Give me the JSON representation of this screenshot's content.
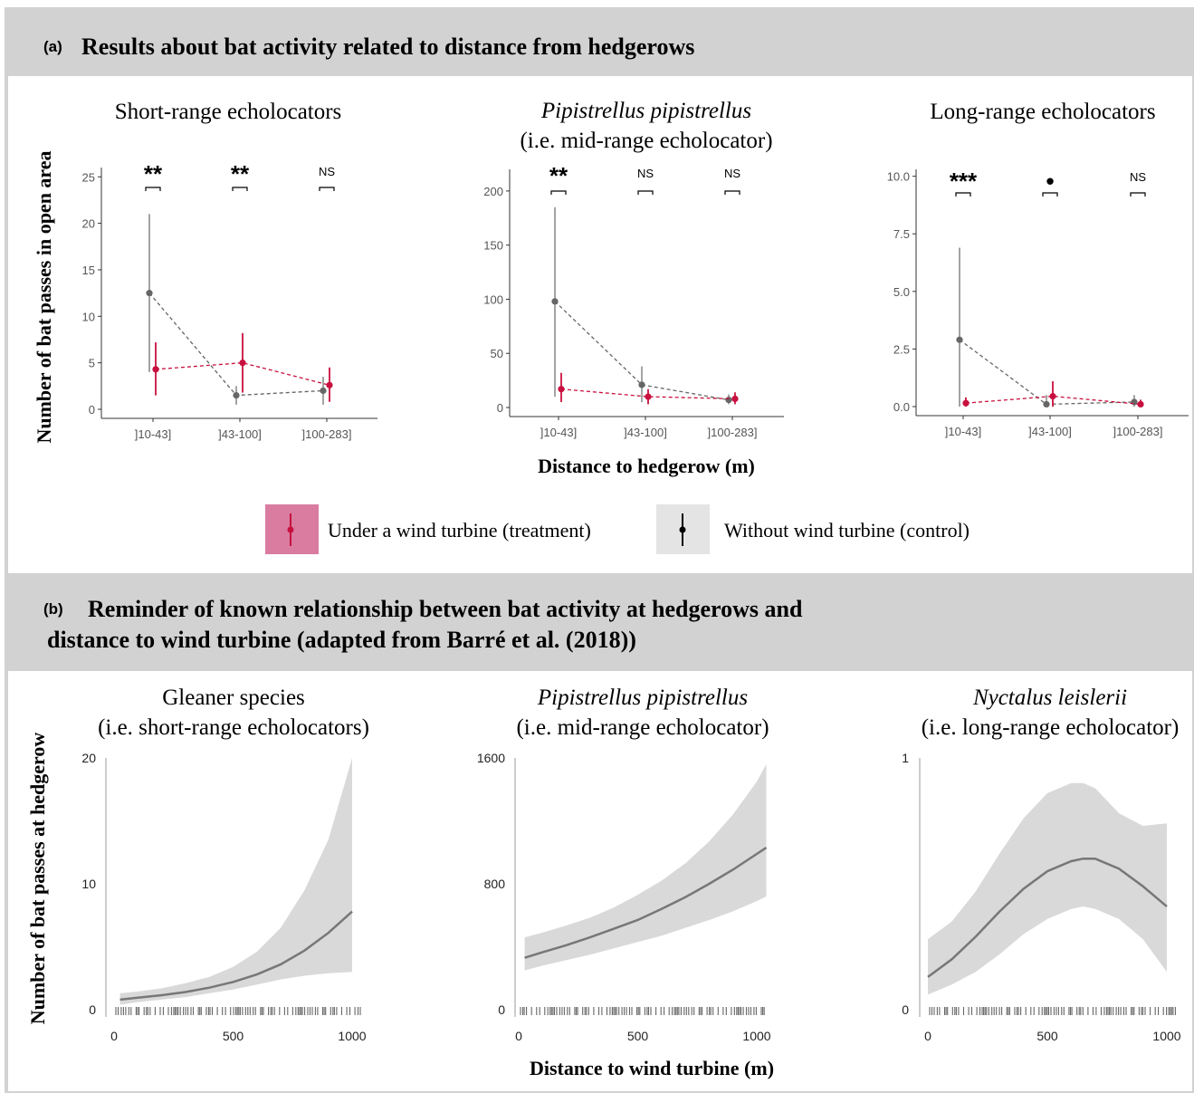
{
  "panel_a": {
    "letter": "(a)",
    "title": "Results about bat activity related to distance from hedgerows",
    "ylabel": "Number of bat passes in open area",
    "xlabel": "Distance to hedgerow (m)",
    "legend": {
      "treatment": "Under a wind turbine (treatment)",
      "control": "Without wind turbine (control)"
    }
  },
  "panel_b": {
    "letter": "(b)",
    "title_line1": "Reminder of known relationship between bat activity at hedgerows and",
    "title_line2": "distance to wind turbine (adapted from Barré et al. (2018))",
    "ylabel": "Number of bat passes at hedgerow",
    "xlabel": "Distance to wind turbine (m)"
  },
  "colors": {
    "treatment": "#c8103e",
    "control": "#666666",
    "header_bg": "#d2d2d2",
    "band": "#d9d9d9",
    "legend_treatment_bg": "#d97ca0",
    "legend_control_bg": "#e4e4e4"
  },
  "chart_data": [
    {
      "type": "scatter",
      "title": "Short-range echolocators",
      "categories": [
        "]10-43]",
        "]43-100]",
        "]100-283]"
      ],
      "ylim": [
        0,
        26
      ],
      "yticks": [
        0,
        5,
        10,
        15,
        20,
        25
      ],
      "ytick_labels": [
        "0",
        "5",
        "10",
        "15",
        "20",
        "25"
      ],
      "significance": [
        "**",
        "**",
        "NS"
      ],
      "series": [
        {
          "key": "control",
          "values": [
            12.5,
            1.5,
            2.0
          ],
          "lower": [
            4.0,
            0.5,
            0.5
          ],
          "upper": [
            21.0,
            2.5,
            3.5
          ]
        },
        {
          "key": "treatment",
          "values": [
            4.3,
            5.0,
            2.6
          ],
          "lower": [
            1.5,
            1.8,
            0.8
          ],
          "upper": [
            7.2,
            8.2,
            4.5
          ]
        }
      ]
    },
    {
      "type": "scatter",
      "title_italic": "Pipistrellus pipistrellus",
      "title_line2": "(i.e. mid-range echolocator)",
      "categories": [
        "]10-43]",
        "]43-100]",
        "]100-283]"
      ],
      "ylim": [
        0,
        220
      ],
      "yticks": [
        0,
        50,
        100,
        150,
        200
      ],
      "ytick_labels": [
        "0",
        "50",
        "100",
        "150",
        "200"
      ],
      "significance": [
        "**",
        "NS",
        "NS"
      ],
      "series": [
        {
          "key": "control",
          "values": [
            98,
            21,
            7
          ],
          "lower": [
            10,
            5,
            3
          ],
          "upper": [
            185,
            38,
            12
          ]
        },
        {
          "key": "treatment",
          "values": [
            17,
            10,
            8
          ],
          "lower": [
            5,
            3,
            3
          ],
          "upper": [
            32,
            17,
            14
          ]
        }
      ]
    },
    {
      "type": "scatter",
      "title": "Long-range echolocators",
      "categories": [
        "]10-43]",
        "]43-100]",
        "]100-283]"
      ],
      "ylim": [
        0,
        10.3
      ],
      "yticks": [
        0,
        2.5,
        5,
        7.5,
        10
      ],
      "ytick_labels": [
        "0.0",
        "2.5",
        "5.0",
        "7.5",
        "10.0"
      ],
      "significance": [
        "***",
        "•",
        "NS"
      ],
      "series": [
        {
          "key": "control",
          "values": [
            2.9,
            0.1,
            0.2
          ],
          "lower": [
            0.0,
            0.0,
            0.0
          ],
          "upper": [
            6.9,
            0.5,
            0.5
          ]
        },
        {
          "key": "treatment",
          "values": [
            0.15,
            0.45,
            0.1
          ],
          "lower": [
            0.0,
            0.0,
            0.0
          ],
          "upper": [
            0.4,
            1.1,
            0.3
          ]
        }
      ]
    },
    {
      "type": "line",
      "title": "Gleaner species",
      "title_line2": "(i.e. short-range echolocators)",
      "xlim": [
        0,
        1050
      ],
      "xticks": [
        0,
        500,
        1000
      ],
      "ylim": [
        0,
        20
      ],
      "yticks": [
        0,
        10,
        20
      ],
      "x": [
        25,
        100,
        200,
        300,
        400,
        500,
        600,
        700,
        800,
        900,
        1000
      ],
      "y": [
        0.8,
        0.95,
        1.15,
        1.4,
        1.75,
        2.2,
        2.8,
        3.6,
        4.7,
        6.1,
        7.8
      ],
      "lower": [
        0.4,
        0.6,
        0.8,
        1.0,
        1.3,
        1.6,
        2.0,
        2.4,
        2.7,
        2.9,
        3.0
      ],
      "upper": [
        1.3,
        1.45,
        1.7,
        2.1,
        2.6,
        3.4,
        4.6,
        6.5,
        9.5,
        13.5,
        20.0
      ]
    },
    {
      "type": "line",
      "title_italic": "Pipistrellus pipistrellus",
      "title_line2": "(i.e. mid-range echolocator)",
      "xlim": [
        0,
        1050
      ],
      "xticks": [
        0,
        500,
        1000
      ],
      "ylim": [
        0,
        1600
      ],
      "yticks": [
        0,
        800,
        1600
      ],
      "x": [
        25,
        100,
        200,
        300,
        400,
        500,
        600,
        700,
        800,
        900,
        1000,
        1040
      ],
      "y": [
        330,
        365,
        410,
        460,
        515,
        570,
        640,
        715,
        800,
        890,
        990,
        1030
      ],
      "lower": [
        250,
        280,
        315,
        350,
        390,
        430,
        470,
        520,
        570,
        625,
        690,
        720
      ],
      "upper": [
        460,
        490,
        535,
        585,
        650,
        730,
        820,
        930,
        1070,
        1240,
        1450,
        1560
      ]
    },
    {
      "type": "line",
      "title_italic": "Nyctalus leislerii",
      "title_line2": "(i.e. long-range echolocator)",
      "xlim": [
        0,
        1050
      ],
      "xticks": [
        0,
        500,
        1000
      ],
      "ylim": [
        0,
        1
      ],
      "yticks": [
        0,
        1
      ],
      "x": [
        0,
        100,
        200,
        300,
        400,
        500,
        600,
        650,
        700,
        800,
        900,
        1000
      ],
      "y": [
        0.13,
        0.2,
        0.29,
        0.39,
        0.48,
        0.55,
        0.59,
        0.6,
        0.6,
        0.56,
        0.49,
        0.41
      ],
      "lower": [
        0.06,
        0.1,
        0.15,
        0.22,
        0.3,
        0.36,
        0.4,
        0.41,
        0.4,
        0.36,
        0.28,
        0.15
      ],
      "upper": [
        0.28,
        0.35,
        0.47,
        0.62,
        0.76,
        0.86,
        0.9,
        0.9,
        0.88,
        0.78,
        0.73,
        0.74
      ]
    }
  ]
}
